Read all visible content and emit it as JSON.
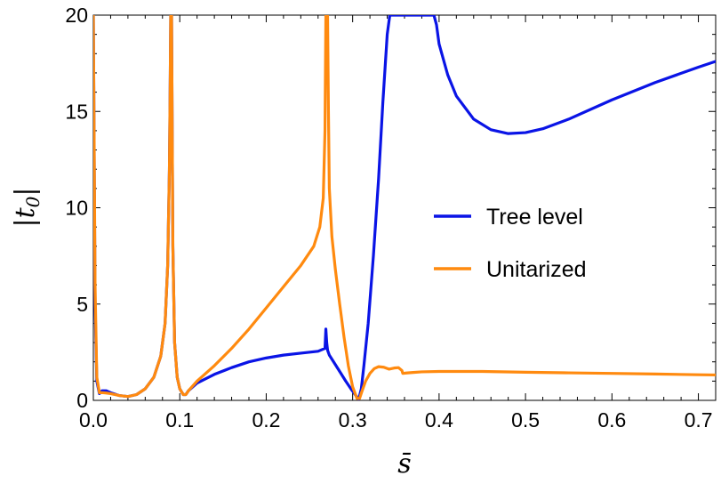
{
  "chart_data": {
    "type": "line",
    "title": "",
    "xlabel": "s̄",
    "ylabel": "|t0|",
    "ylabel_main": "|t",
    "ylabel_sub": "0",
    "ylabel_end": "|",
    "xlim": [
      0,
      0.72
    ],
    "ylim": [
      0,
      20
    ],
    "xticks": [
      0.0,
      0.1,
      0.2,
      0.3,
      0.4,
      0.5,
      0.6,
      0.7
    ],
    "xtick_labels": [
      "0.0",
      "0.1",
      "0.2",
      "0.3",
      "0.4",
      "0.5",
      "0.6",
      "0.7"
    ],
    "yticks": [
      0,
      5,
      10,
      15,
      20
    ],
    "ytick_labels": [
      "0",
      "5",
      "10",
      "15",
      "20"
    ],
    "grid": false,
    "legend_position": "center-right",
    "series": [
      {
        "name": "Tree level",
        "color": "#0a14e6",
        "x": [
          0.0,
          0.002,
          0.004,
          0.007,
          0.01,
          0.015,
          0.02,
          0.03,
          0.04,
          0.05,
          0.06,
          0.07,
          0.078,
          0.083,
          0.086,
          0.088,
          0.089,
          0.0895,
          0.09,
          0.0905,
          0.091,
          0.092,
          0.094,
          0.097,
          0.1,
          0.104,
          0.107,
          0.11,
          0.12,
          0.14,
          0.16,
          0.18,
          0.2,
          0.22,
          0.24,
          0.26,
          0.268,
          0.269,
          0.27,
          0.271,
          0.273,
          0.278,
          0.285,
          0.292,
          0.298,
          0.303,
          0.307,
          0.31,
          0.313,
          0.318,
          0.324,
          0.33,
          0.335,
          0.34,
          0.343,
          0.345,
          0.347,
          0.392,
          0.394,
          0.397,
          0.4,
          0.41,
          0.42,
          0.44,
          0.46,
          0.48,
          0.5,
          0.52,
          0.55,
          0.6,
          0.65,
          0.7,
          0.72
        ],
        "y": [
          20,
          5.0,
          1.0,
          0.35,
          0.5,
          0.5,
          0.4,
          0.25,
          0.2,
          0.3,
          0.6,
          1.2,
          2.3,
          4.0,
          7.0,
          12.0,
          17.0,
          20,
          20,
          20,
          16.0,
          8.0,
          3.0,
          1.2,
          0.6,
          0.3,
          0.3,
          0.5,
          0.9,
          1.35,
          1.7,
          2.0,
          2.2,
          2.35,
          2.45,
          2.55,
          2.7,
          3.7,
          3.0,
          2.6,
          2.35,
          2.0,
          1.5,
          1.0,
          0.6,
          0.3,
          0.05,
          0.6,
          1.8,
          4.0,
          7.5,
          11.5,
          15.5,
          19.0,
          20,
          20,
          20,
          20,
          20,
          19.5,
          18.5,
          16.9,
          15.8,
          14.6,
          14.05,
          13.85,
          13.9,
          14.1,
          14.6,
          15.6,
          16.5,
          17.3,
          17.6
        ]
      },
      {
        "name": "Unitarized",
        "color": "#ff8a0f",
        "x": [
          0.0,
          0.002,
          0.004,
          0.007,
          0.01,
          0.015,
          0.02,
          0.03,
          0.04,
          0.05,
          0.06,
          0.07,
          0.078,
          0.083,
          0.086,
          0.088,
          0.089,
          0.0895,
          0.09,
          0.0905,
          0.091,
          0.092,
          0.094,
          0.097,
          0.1,
          0.104,
          0.107,
          0.11,
          0.12,
          0.14,
          0.16,
          0.18,
          0.2,
          0.22,
          0.24,
          0.255,
          0.262,
          0.266,
          0.268,
          0.269,
          0.27,
          0.271,
          0.272,
          0.273,
          0.276,
          0.28,
          0.285,
          0.29,
          0.295,
          0.3,
          0.305,
          0.308,
          0.311,
          0.315,
          0.32,
          0.325,
          0.33,
          0.336,
          0.342,
          0.348,
          0.353,
          0.357,
          0.358,
          0.362,
          0.37,
          0.38,
          0.4,
          0.45,
          0.5,
          0.55,
          0.6,
          0.65,
          0.7,
          0.72
        ],
        "y": [
          20,
          6.0,
          1.2,
          0.4,
          0.4,
          0.38,
          0.35,
          0.25,
          0.2,
          0.3,
          0.6,
          1.2,
          2.3,
          4.0,
          7.0,
          12.0,
          17.0,
          20,
          20,
          20,
          16.0,
          8.0,
          3.0,
          1.2,
          0.6,
          0.3,
          0.3,
          0.5,
          1.0,
          1.8,
          2.7,
          3.7,
          4.8,
          5.9,
          7.0,
          8.0,
          9.0,
          10.5,
          14.0,
          20,
          20,
          20,
          15.0,
          11.0,
          8.5,
          6.8,
          5.0,
          3.3,
          1.8,
          0.7,
          0.1,
          0.1,
          0.5,
          1.0,
          1.4,
          1.65,
          1.75,
          1.72,
          1.62,
          1.68,
          1.7,
          1.55,
          1.4,
          1.42,
          1.45,
          1.48,
          1.5,
          1.5,
          1.46,
          1.43,
          1.4,
          1.37,
          1.33,
          1.32
        ]
      }
    ]
  }
}
